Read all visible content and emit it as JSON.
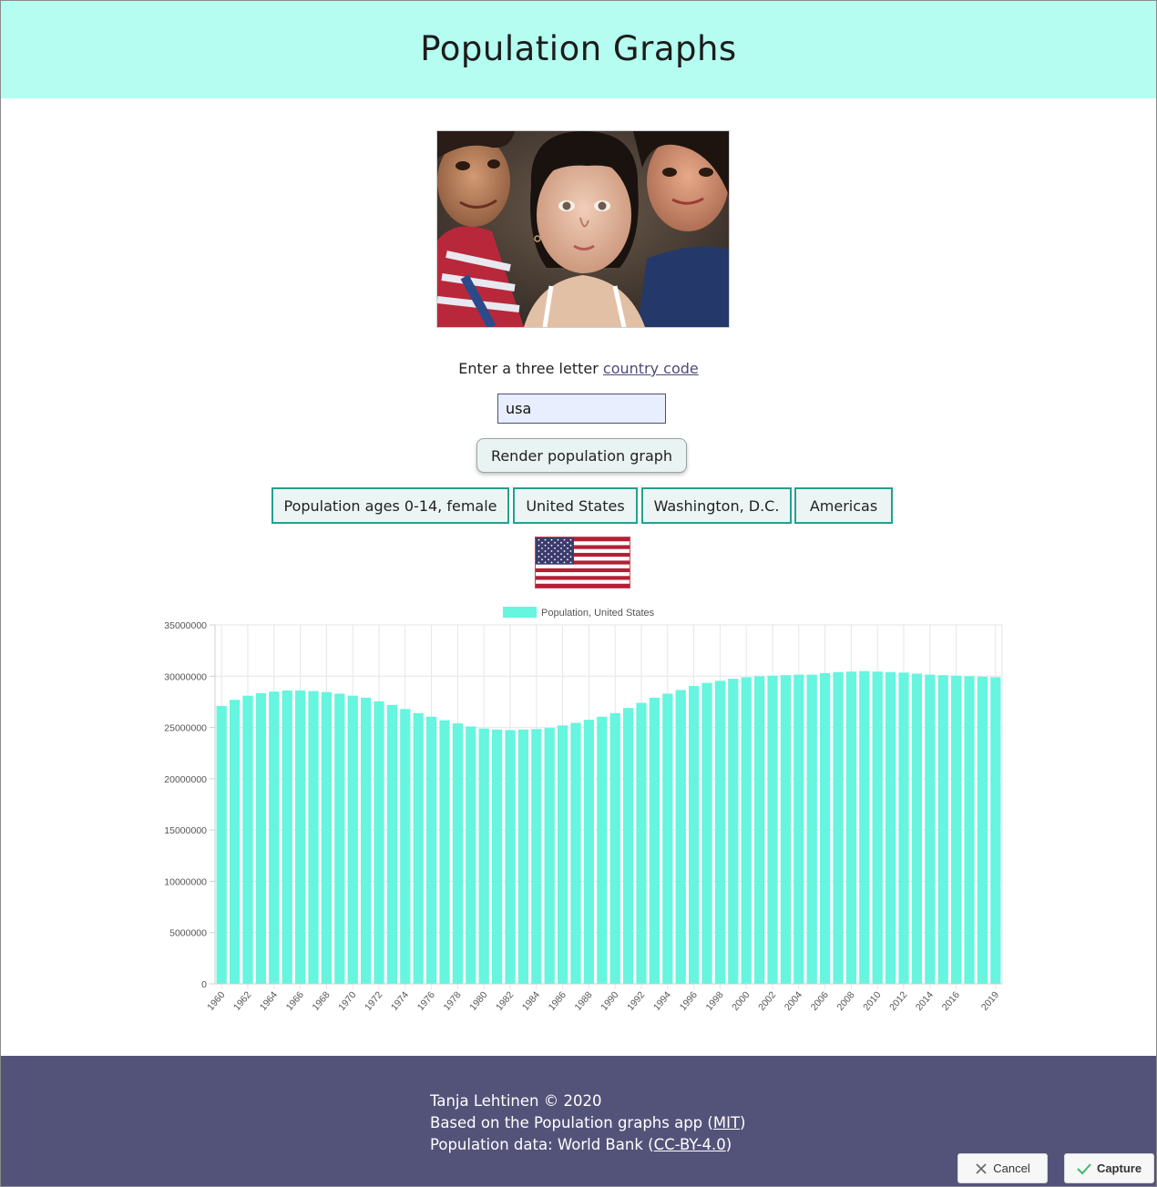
{
  "header": {
    "title": "Population Graphs"
  },
  "form": {
    "prompt_text": "Enter a three letter",
    "prompt_link": "country code",
    "input_value": "usa",
    "render_label": "Render population graph"
  },
  "info_chips": [
    "Population ages 0-14, female",
    "United States",
    "Washington, D.C.",
    "Americas"
  ],
  "chart_data": {
    "type": "bar",
    "legend": "Population, United States",
    "legend_position": "top",
    "ylim": [
      0,
      35000000
    ],
    "yticks": [
      "35000000",
      "30000000",
      "25000000",
      "20000000",
      "15000000",
      "10000000",
      "5000000",
      "0"
    ],
    "grid": true,
    "bar_color": "#66f5de",
    "categories": [
      "1960",
      "1961",
      "1962",
      "1963",
      "1964",
      "1965",
      "1966",
      "1967",
      "1968",
      "1969",
      "1970",
      "1971",
      "1972",
      "1973",
      "1974",
      "1975",
      "1976",
      "1977",
      "1978",
      "1979",
      "1980",
      "1981",
      "1982",
      "1983",
      "1984",
      "1985",
      "1986",
      "1987",
      "1988",
      "1989",
      "1990",
      "1991",
      "1992",
      "1993",
      "1994",
      "1995",
      "1996",
      "1997",
      "1998",
      "1999",
      "2000",
      "2001",
      "2002",
      "2003",
      "2004",
      "2005",
      "2006",
      "2007",
      "2008",
      "2009",
      "2010",
      "2011",
      "2012",
      "2013",
      "2014",
      "2015",
      "2016",
      "2017",
      "2018",
      "2019"
    ],
    "xticks": [
      "1960",
      "1962",
      "1964",
      "1966",
      "1968",
      "1970",
      "1972",
      "1974",
      "1976",
      "1978",
      "1980",
      "1982",
      "1984",
      "1986",
      "1988",
      "1990",
      "1992",
      "1994",
      "1996",
      "1998",
      "2000",
      "2002",
      "2004",
      "2006",
      "2008",
      "2010",
      "2012",
      "2014",
      "2016",
      "2019"
    ],
    "values": [
      27100000,
      27700000,
      28100000,
      28350000,
      28500000,
      28600000,
      28600000,
      28550000,
      28450000,
      28300000,
      28100000,
      27900000,
      27550000,
      27200000,
      26800000,
      26400000,
      26050000,
      25700000,
      25400000,
      25100000,
      24900000,
      24800000,
      24750000,
      24800000,
      24850000,
      24950000,
      25200000,
      25450000,
      25750000,
      26050000,
      26400000,
      26900000,
      27400000,
      27900000,
      28300000,
      28650000,
      29050000,
      29350000,
      29550000,
      29750000,
      29900000,
      30000000,
      30050000,
      30100000,
      30150000,
      30150000,
      30300000,
      30400000,
      30450000,
      30500000,
      30450000,
      30400000,
      30350000,
      30250000,
      30150000,
      30100000,
      30050000,
      30000000,
      29950000,
      29900000
    ]
  },
  "footer": {
    "line1": "Tanja Lehtinen © 2020",
    "line2_text": "Based on the Population graphs app",
    "line2_link": "MIT",
    "line3_text": "Population data: World Bank",
    "line3_link": "CC-BY-4.0"
  },
  "capture": {
    "cancel_label": "Cancel",
    "capture_label": "Capture"
  }
}
